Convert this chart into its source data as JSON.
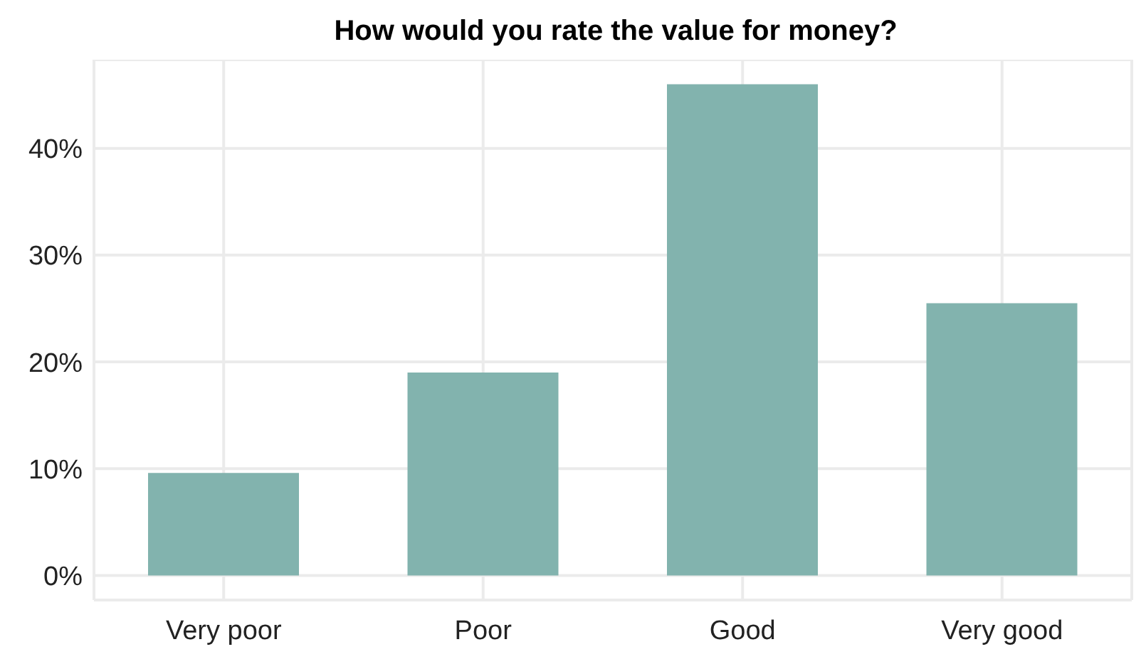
{
  "chart_data": {
    "type": "bar",
    "title": "How would you rate the value for money?",
    "categories": [
      "Very poor",
      "Poor",
      "Good",
      "Very good"
    ],
    "values": [
      9.6,
      19.0,
      46.0,
      25.5
    ],
    "color": "#82b3ae",
    "ylim": [
      -2.3,
      48.3
    ],
    "yticks": [
      {
        "value": 0,
        "label": "0%"
      },
      {
        "value": 10,
        "label": "10%"
      },
      {
        "value": 20,
        "label": "20%"
      },
      {
        "value": 30,
        "label": "30%"
      },
      {
        "value": 40,
        "label": "40%"
      }
    ],
    "grid": true
  }
}
